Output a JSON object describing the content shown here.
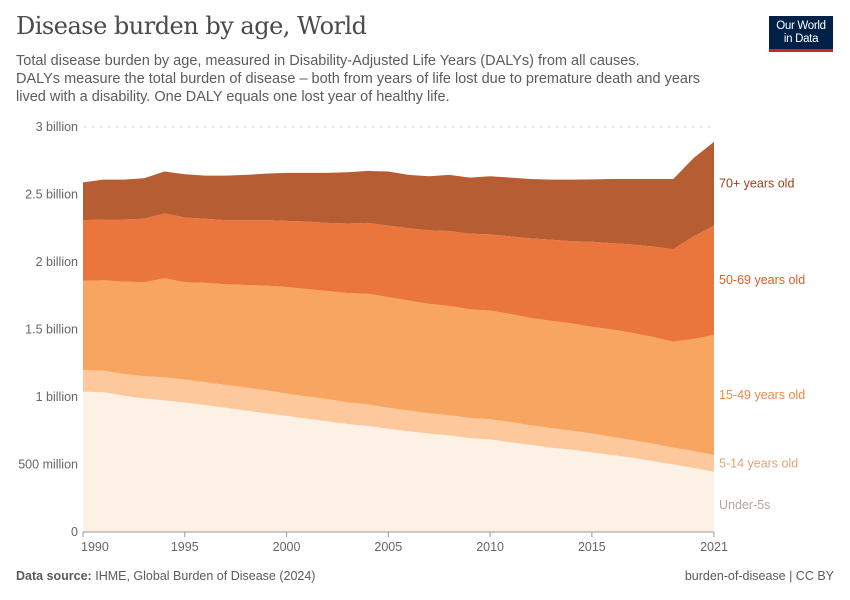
{
  "header": {
    "title": "Disease burden by age, World",
    "subtitle_lines": [
      "Total disease burden by age, measured in Disability-Adjusted Life Years (DALYs) from all causes.",
      "DALYs measure the total burden of disease – both from years of life lost due to premature death and years",
      "lived with a disability. One DALY equals one lost year of healthy life."
    ],
    "logo_lines": [
      "Our World",
      "in Data"
    ]
  },
  "footer": {
    "source_label": "Data source:",
    "source_text": "IHME, Global Burden of Disease (2024)",
    "license": "burden-of-disease | CC BY"
  },
  "chart_data": {
    "type": "area",
    "stacked": true,
    "title": "Disease burden by age, World",
    "xlabel": "",
    "ylabel": "",
    "xlim": [
      1990,
      2021
    ],
    "ylim": [
      0,
      3000000000
    ],
    "grid": "horizontal dashed",
    "legend": "right (inline labels)",
    "x_ticks": [
      1990,
      1995,
      2000,
      2005,
      2010,
      2015,
      2021
    ],
    "x_tick_labels": [
      "1990",
      "1995",
      "2000",
      "2005",
      "2010",
      "2015",
      "2021"
    ],
    "y_ticks": [
      0,
      500000000,
      1000000000,
      1500000000,
      2000000000,
      2500000000,
      3000000000
    ],
    "y_tick_labels": [
      "0",
      "500 million",
      "1 billion",
      "1.5 billion",
      "2 billion",
      "2.5 billion",
      "3 billion"
    ],
    "x": [
      1990,
      1991,
      1992,
      1993,
      1994,
      1995,
      1996,
      1997,
      1998,
      1999,
      2000,
      2001,
      2002,
      2003,
      2004,
      2005,
      2006,
      2007,
      2008,
      2009,
      2010,
      2011,
      2012,
      2013,
      2014,
      2015,
      2016,
      2017,
      2018,
      2019,
      2020,
      2021
    ],
    "series": [
      {
        "name": "Under-5s",
        "color": "#fdf0e4",
        "label_color": "#b3a79c",
        "values": [
          1040000000.0,
          1035000000.0,
          1010000000.0,
          990000000.0,
          975000000.0,
          960000000.0,
          940000000.0,
          920000000.0,
          900000000.0,
          880000000.0,
          860000000.0,
          840000000.0,
          820000000.0,
          800000000.0,
          785000000.0,
          765000000.0,
          745000000.0,
          730000000.0,
          715000000.0,
          695000000.0,
          685000000.0,
          665000000.0,
          645000000.0,
          625000000.0,
          610000000.0,
          590000000.0,
          570000000.0,
          550000000.0,
          525000000.0,
          500000000.0,
          475000000.0,
          445000000.0
        ]
      },
      {
        "name": "5-14 years old",
        "color": "#fcc89c",
        "label_color": "#e0a47a",
        "values": [
          160000000.0,
          160000000.0,
          160000000.0,
          165000000.0,
          170000000.0,
          170000000.0,
          170000000.0,
          170000000.0,
          170000000.0,
          170000000.0,
          165000000.0,
          165000000.0,
          165000000.0,
          160000000.0,
          160000000.0,
          155000000.0,
          155000000.0,
          150000000.0,
          150000000.0,
          150000000.0,
          150000000.0,
          150000000.0,
          145000000.0,
          145000000.0,
          140000000.0,
          140000000.0,
          135000000.0,
          130000000.0,
          130000000.0,
          125000000.0,
          125000000.0,
          125000000.0
        ]
      },
      {
        "name": "15-49 years old",
        "color": "#f9a562",
        "label_color": "#ee8845",
        "values": [
          660000000.0,
          670000000.0,
          685000000.0,
          695000000.0,
          735000000.0,
          720000000.0,
          735000000.0,
          745000000.0,
          760000000.0,
          775000000.0,
          790000000.0,
          795000000.0,
          800000000.0,
          810000000.0,
          820000000.0,
          820000000.0,
          815000000.0,
          810000000.0,
          810000000.0,
          805000000.0,
          805000000.0,
          800000000.0,
          795000000.0,
          795000000.0,
          795000000.0,
          790000000.0,
          795000000.0,
          795000000.0,
          790000000.0,
          785000000.0,
          830000000.0,
          890000000.0
        ]
      },
      {
        "name": "50-69 years old",
        "color": "#ea763d",
        "label_color": "#e05d25",
        "values": [
          450000000.0,
          450000000.0,
          460000000.0,
          470000000.0,
          480000000.0,
          480000000.0,
          475000000.0,
          475000000.0,
          480000000.0,
          485000000.0,
          490000000.0,
          500000000.0,
          505000000.0,
          515000000.0,
          525000000.0,
          530000000.0,
          535000000.0,
          545000000.0,
          555000000.0,
          560000000.0,
          565000000.0,
          575000000.0,
          590000000.0,
          600000000.0,
          610000000.0,
          630000000.0,
          640000000.0,
          655000000.0,
          670000000.0,
          685000000.0,
          760000000.0,
          810000000.0
        ]
      },
      {
        "name": "70+ years old",
        "color": "#b65d34",
        "label_color": "#a3401b",
        "values": [
          280000000.0,
          295000000.0,
          295000000.0,
          300000000.0,
          310000000.0,
          320000000.0,
          320000000.0,
          330000000.0,
          335000000.0,
          345000000.0,
          355000000.0,
          360000000.0,
          370000000.0,
          380000000.0,
          385000000.0,
          400000000.0,
          395000000.0,
          400000000.0,
          415000000.0,
          415000000.0,
          430000000.0,
          435000000.0,
          440000000.0,
          445000000.0,
          455000000.0,
          462000000.0,
          475000000.0,
          485000000.0,
          500000000.0,
          520000000.0,
          580000000.0,
          620000000.0
        ]
      }
    ]
  }
}
